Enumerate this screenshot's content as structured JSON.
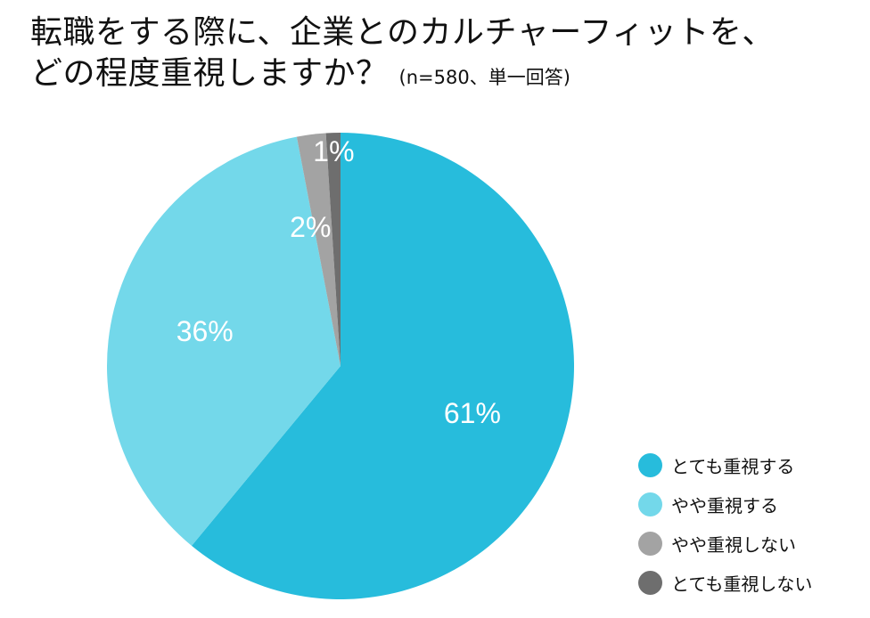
{
  "title": {
    "line1": "転職をする際に、企業とのカルチャーフィットを、",
    "line2": "どの程度重視しますか？",
    "note": "(n=580、単一回答)"
  },
  "chart_data": {
    "type": "pie",
    "title": "転職をする際に、企業とのカルチャーフィットを、どの程度重視しますか？",
    "subtitle": "(n=580、単一回答)",
    "start": "12 o'clock",
    "direction": "clockwise",
    "legend_position": "bottom-right",
    "slices": [
      {
        "label": "とても重視する",
        "value": 61,
        "value_label": "61%",
        "color": "#27bcdc"
      },
      {
        "label": "やや重視する",
        "value": 36,
        "value_label": "36%",
        "color": "#73d8ea"
      },
      {
        "label": "やや重視しない",
        "value": 2,
        "value_label": "2%",
        "color": "#a3a3a3"
      },
      {
        "label": "とても重視しない",
        "value": 1,
        "value_label": "1%",
        "color": "#6e6e6e"
      }
    ]
  },
  "legend": {
    "items": [
      {
        "label": "とても重視する",
        "color": "#27bcdc"
      },
      {
        "label": "やや重視する",
        "color": "#73d8ea"
      },
      {
        "label": "やや重視しない",
        "color": "#a3a3a3"
      },
      {
        "label": "とても重視しない",
        "color": "#6e6e6e"
      }
    ]
  }
}
